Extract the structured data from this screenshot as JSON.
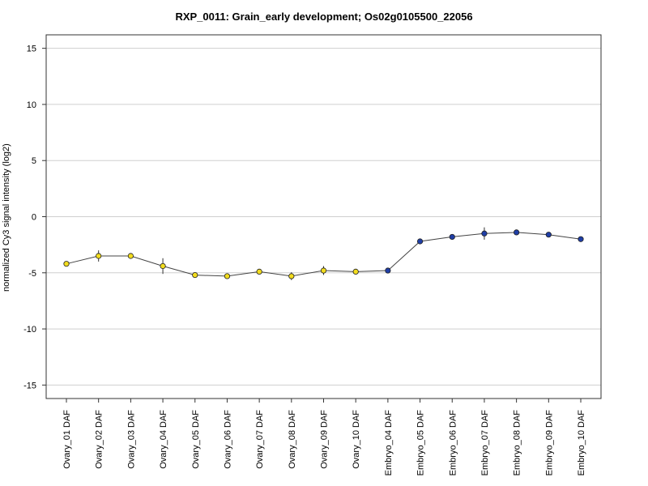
{
  "chart_data": {
    "type": "line",
    "title": "RXP_0011: Grain_early development; Os02g0105500_22056",
    "xlabel": "",
    "ylabel": "normalized Cy3 signal intensity (log2)",
    "ylim": [
      -16.2,
      16.2
    ],
    "yticks": [
      15,
      10,
      5,
      0,
      -5,
      -10,
      -15
    ],
    "grid": true,
    "categories": [
      "Ovary_01 DAF",
      "Ovary_02 DAF",
      "Ovary_03 DAF",
      "Ovary_04 DAF",
      "Ovary_05 DAF",
      "Ovary_06 DAF",
      "Ovary_07 DAF",
      "Ovary_08 DAF",
      "Ovary_09 DAF",
      "Ovary_10 DAF",
      "Embryo_04 DAF",
      "Embryo_05 DAF",
      "Embryo_06 DAF",
      "Embryo_07 DAF",
      "Embryo_08 DAF",
      "Embryo_09 DAF",
      "Embryo_10 DAF"
    ],
    "series": [
      {
        "values": [
          -4.2,
          -3.5,
          -3.5,
          -4.4,
          -5.2,
          -5.3,
          -4.9,
          -5.3,
          -4.8,
          -4.9,
          -4.8,
          -2.2,
          -1.8,
          -1.5,
          -1.4,
          -1.6,
          -2.0
        ],
        "errors": [
          0.15,
          0.5,
          0.15,
          0.7,
          0.2,
          0.15,
          0.2,
          0.35,
          0.4,
          0.25,
          0.25,
          0.15,
          0.2,
          0.55,
          0.15,
          0.15,
          0.15
        ],
        "colors": [
          "#f2dc1e",
          "#f2dc1e",
          "#f2dc1e",
          "#f2dc1e",
          "#f2dc1e",
          "#f2dc1e",
          "#f2dc1e",
          "#f2dc1e",
          "#f2dc1e",
          "#f2dc1e",
          "#1f3ea6",
          "#1f3ea6",
          "#1f3ea6",
          "#1f3ea6",
          "#1f3ea6",
          "#1f3ea6",
          "#1f3ea6"
        ]
      }
    ]
  }
}
